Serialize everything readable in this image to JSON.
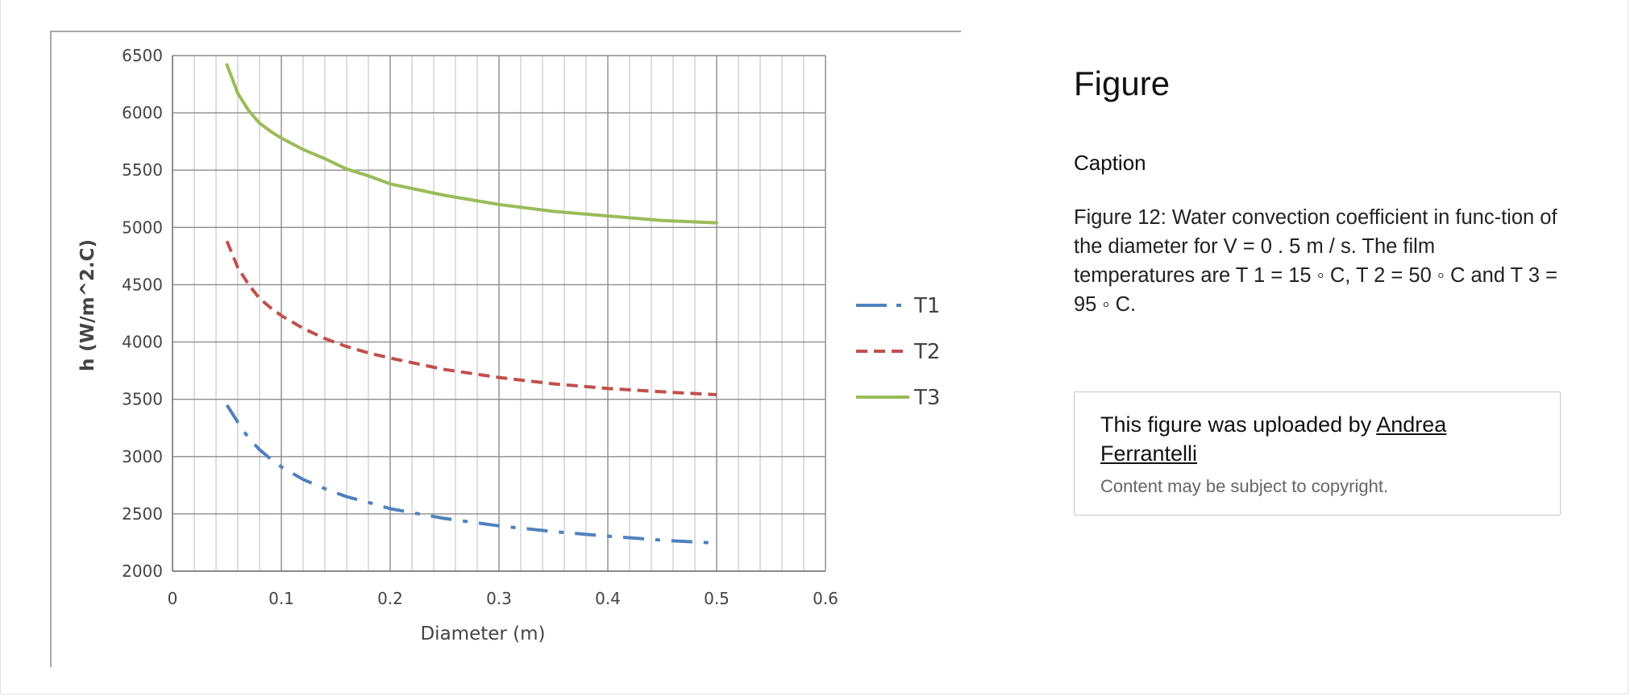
{
  "chart_data": {
    "type": "line",
    "title": "",
    "xlabel": "Diameter (m)",
    "ylabel": "h (W/m^2.C)",
    "xlim": [
      0,
      0.6
    ],
    "ylim": [
      2000,
      6500
    ],
    "x_ticks": [
      "0",
      "0.1",
      "0.2",
      "0.3",
      "0.4",
      "0.5",
      "0.6"
    ],
    "y_ticks": [
      "6500",
      "6000",
      "5500",
      "5000",
      "4500",
      "4000",
      "3500",
      "3000",
      "2500",
      "2000"
    ],
    "grid": true,
    "legend_position": "right",
    "x": [
      0.05,
      0.06,
      0.07,
      0.08,
      0.09,
      0.1,
      0.12,
      0.14,
      0.16,
      0.18,
      0.2,
      0.25,
      0.3,
      0.35,
      0.4,
      0.45,
      0.5
    ],
    "series": [
      {
        "name": "T1",
        "color": "#4f81bd",
        "dash": "dash-dot",
        "values": [
          3450,
          3300,
          3160,
          3060,
          2980,
          2910,
          2800,
          2720,
          2650,
          2600,
          2545,
          2460,
          2395,
          2345,
          2305,
          2270,
          2245
        ]
      },
      {
        "name": "T2",
        "color": "#c0504d",
        "dash": "dashed",
        "values": [
          4880,
          4650,
          4500,
          4380,
          4300,
          4230,
          4120,
          4030,
          3960,
          3905,
          3860,
          3760,
          3690,
          3635,
          3595,
          3565,
          3540
        ]
      },
      {
        "name": "T3",
        "color": "#9bbb59",
        "dash": "solid",
        "values": [
          6420,
          6170,
          6020,
          5910,
          5840,
          5780,
          5680,
          5600,
          5510,
          5450,
          5380,
          5280,
          5200,
          5140,
          5100,
          5060,
          5040
        ]
      }
    ]
  },
  "side_panel": {
    "title": "Figure",
    "caption_heading": "Caption",
    "caption_text": "Figure 12: Water convection coefficient in func-tion of the diameter for V = 0 . 5 m / s. The film temperatures are T 1 = 15 ◦ C, T 2 = 50 ◦ C and T 3 = 95 ◦ C.",
    "upload_prefix": "This figure was uploaded by ",
    "uploader_name": "Andrea Ferrantelli",
    "copyright_note": "Content may be subject to copyright."
  }
}
